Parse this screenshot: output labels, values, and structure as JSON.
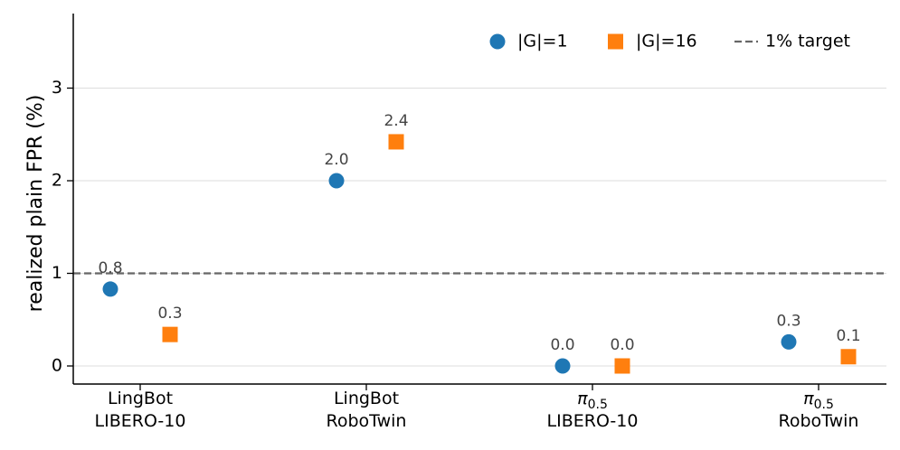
{
  "chart_data": {
    "type": "scatter",
    "ylabel": "realized plain FPR (%)",
    "ylim": [
      -0.2,
      3.8
    ],
    "yticks": [
      0,
      1,
      2,
      3
    ],
    "grid": "horizontal",
    "legend_position": "top-right",
    "categories": [
      {
        "line1": "LingBot",
        "line2": "LIBERO-10",
        "math": false
      },
      {
        "line1": "LingBot",
        "line2": "RoboTwin",
        "math": false
      },
      {
        "line1": "π",
        "sub": "0.5",
        "line2": "LIBERO-10",
        "math": true
      },
      {
        "line1": "π",
        "sub": "0.5",
        "line2": "RoboTwin",
        "math": true
      }
    ],
    "series": [
      {
        "name": "|G|=1",
        "marker": "circle",
        "color": "#1f77b4",
        "values": [
          0.83,
          2.0,
          0.0,
          0.26
        ],
        "labels": [
          "0.8",
          "2.0",
          "0.0",
          "0.3"
        ]
      },
      {
        "name": "|G|=16",
        "marker": "square",
        "color": "#ff7f0e",
        "values": [
          0.34,
          2.42,
          0.0,
          0.1
        ],
        "labels": [
          "0.3",
          "2.4",
          "0.0",
          "0.1"
        ]
      }
    ],
    "reference_line": {
      "name": "1% target",
      "value": 1,
      "color": "#666666",
      "style": "dashed"
    }
  }
}
